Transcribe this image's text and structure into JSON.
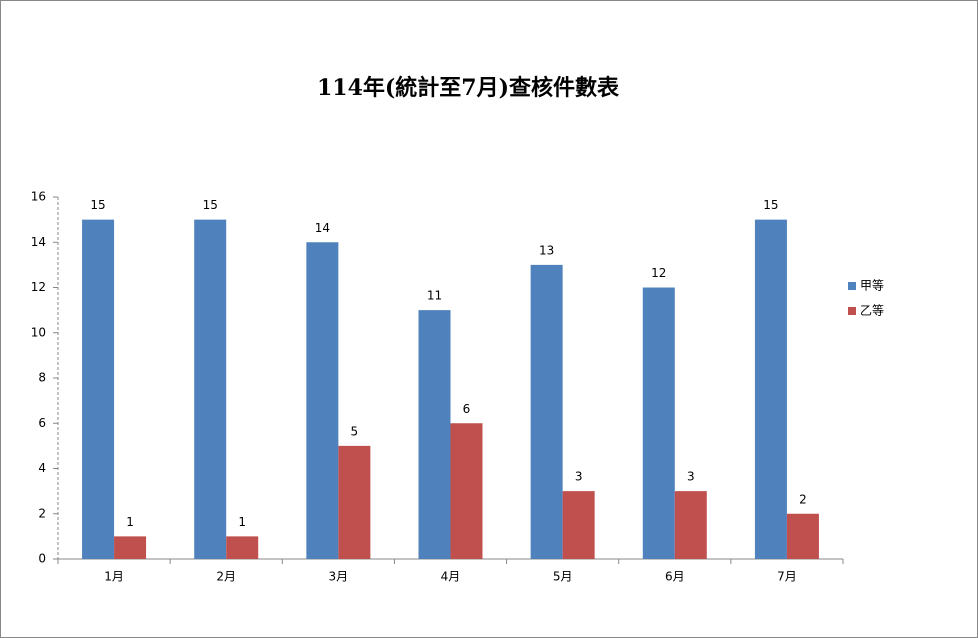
{
  "chart_data": {
    "type": "bar",
    "title": "114年(統計至7月)查核件數表",
    "categories": [
      "1月",
      "2月",
      "3月",
      "4月",
      "5月",
      "6月",
      "7月"
    ],
    "series": [
      {
        "name": "甲等",
        "color": "#4f81bd",
        "values": [
          15,
          15,
          14,
          11,
          13,
          12,
          15
        ]
      },
      {
        "name": "乙等",
        "color": "#c0504d",
        "values": [
          1,
          1,
          5,
          6,
          3,
          3,
          2
        ]
      }
    ],
    "ylim": [
      0,
      16
    ],
    "yticks": [
      0,
      2,
      4,
      6,
      8,
      10,
      12,
      14,
      16
    ],
    "grid": false,
    "legend": "right"
  }
}
